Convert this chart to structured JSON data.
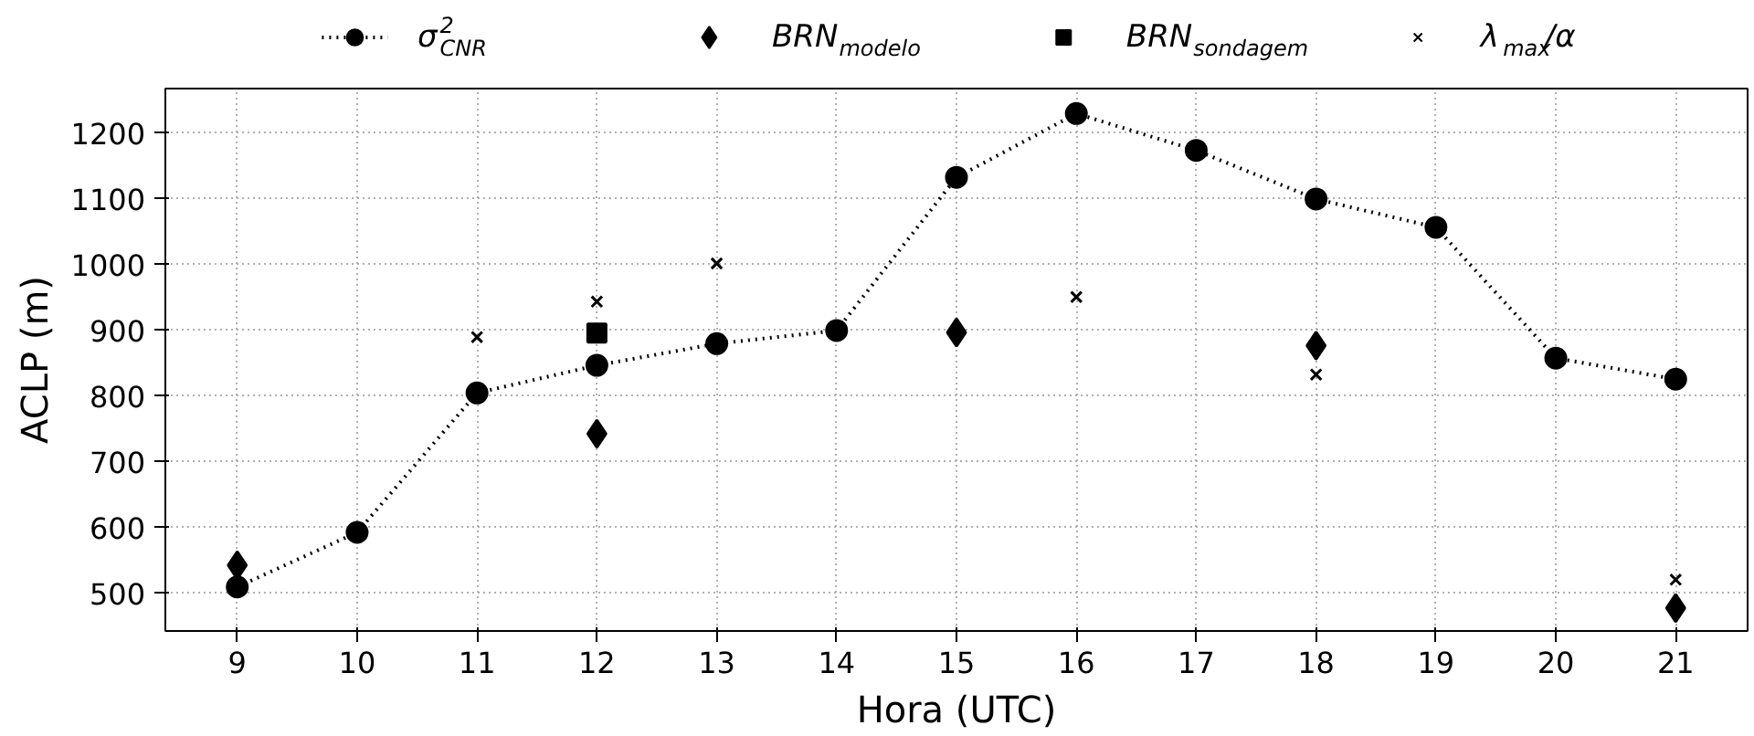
{
  "chart_data": {
    "type": "line",
    "xlabel": "Hora (UTC)",
    "ylabel": "ACLP (m)",
    "x": [
      9,
      10,
      11,
      12,
      13,
      14,
      15,
      16,
      17,
      18,
      19,
      20,
      21
    ],
    "series": [
      {
        "name": "σ$^{2}$$_{CNR}$",
        "color": "#000000",
        "marker": "circle",
        "line_style": "dotted",
        "values": [
          510,
          593,
          805,
          847,
          880,
          900,
          1133,
          1230,
          1174,
          1100,
          1057,
          858,
          826
        ]
      },
      {
        "name": "BRN$_{modelo}$",
        "type": "scatter",
        "color": "#000000",
        "marker": "diamond",
        "x": [
          9,
          12,
          15,
          18,
          21
        ],
        "values": [
          543,
          743,
          897,
          877,
          478
        ]
      },
      {
        "name": "BRN$_{sondagem}$",
        "type": "scatter",
        "color": "#000000",
        "marker": "square",
        "x": [
          12
        ],
        "values": [
          896
        ]
      },
      {
        "name": "λ$_{max}$/α",
        "type": "scatter",
        "color": "#000000",
        "marker": "cross",
        "x": [
          11,
          12,
          13,
          16,
          18,
          21
        ],
        "values": [
          890,
          944,
          1002,
          951,
          833,
          521
        ]
      }
    ],
    "xlim": [
      8.4,
      21.6
    ],
    "ylim": [
      443,
      1268
    ],
    "xticks": [
      9,
      10,
      11,
      12,
      13,
      14,
      15,
      16,
      17,
      18,
      19,
      20,
      21
    ],
    "yticks": [
      500,
      600,
      700,
      800,
      900,
      1000,
      1100,
      1200
    ],
    "grid": true,
    "legend": "top"
  }
}
